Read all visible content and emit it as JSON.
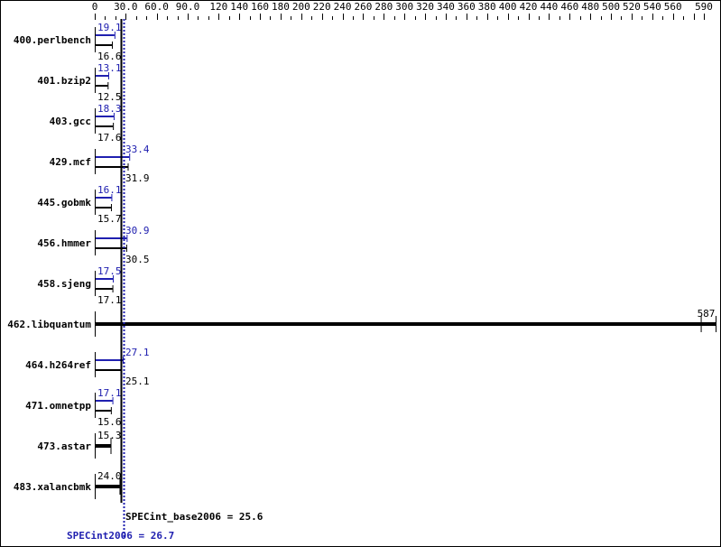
{
  "chart_data": {
    "type": "bar",
    "orientation": "horizontal",
    "xlim": [
      0,
      590
    ],
    "x_tick_labels": [
      "0",
      "30.0",
      "60.0",
      "90.0",
      "120",
      "140",
      "160",
      "180",
      "200",
      "220",
      "240",
      "260",
      "280",
      "300",
      "320",
      "340",
      "360",
      "380",
      "400",
      "420",
      "440",
      "460",
      "480",
      "500",
      "520",
      "540",
      "560",
      "590"
    ],
    "x_tick_values": [
      0,
      30,
      60,
      90,
      120,
      140,
      160,
      180,
      200,
      220,
      240,
      260,
      280,
      300,
      320,
      340,
      360,
      380,
      400,
      420,
      440,
      460,
      480,
      500,
      520,
      540,
      560,
      590
    ],
    "categories": [
      "400.perlbench",
      "401.bzip2",
      "403.gcc",
      "429.mcf",
      "445.gobmk",
      "456.hmmer",
      "458.sjeng",
      "462.libquantum",
      "464.h264ref",
      "471.omnetpp",
      "473.astar",
      "483.xalancbmk"
    ],
    "series": [
      {
        "name": "peak",
        "color": "#2020b0",
        "values": [
          19.1,
          13.1,
          18.3,
          33.4,
          16.1,
          30.9,
          17.5,
          null,
          27.1,
          17.1,
          null,
          null
        ]
      },
      {
        "name": "base",
        "color": "#000000",
        "values": [
          16.6,
          12.5,
          17.6,
          31.9,
          15.7,
          30.5,
          17.1,
          587,
          25.1,
          15.6,
          15.3,
          24.0
        ]
      }
    ],
    "single_bar_labels": [
      "",
      "",
      "",
      "",
      "",
      "",
      "",
      "587",
      "",
      "",
      "15.3",
      "24.0"
    ],
    "peak_labels": [
      "19.1",
      "13.1",
      "18.3",
      "33.4",
      "16.1",
      "30.9",
      "17.5",
      "",
      "27.1",
      "17.1",
      "",
      ""
    ],
    "base_labels": [
      "16.6",
      "12.5",
      "17.6",
      "31.9",
      "15.7",
      "30.5",
      "17.1",
      "",
      "25.1",
      "15.6",
      "",
      ""
    ],
    "reference_lines": [
      {
        "label": "SPECint_base2006 = 25.6",
        "value": 25.6,
        "color": "#000000",
        "style": "solid"
      },
      {
        "label": "SPECint2006 = 26.7",
        "value": 26.7,
        "color": "#2020b0",
        "style": "dotted"
      }
    ]
  }
}
